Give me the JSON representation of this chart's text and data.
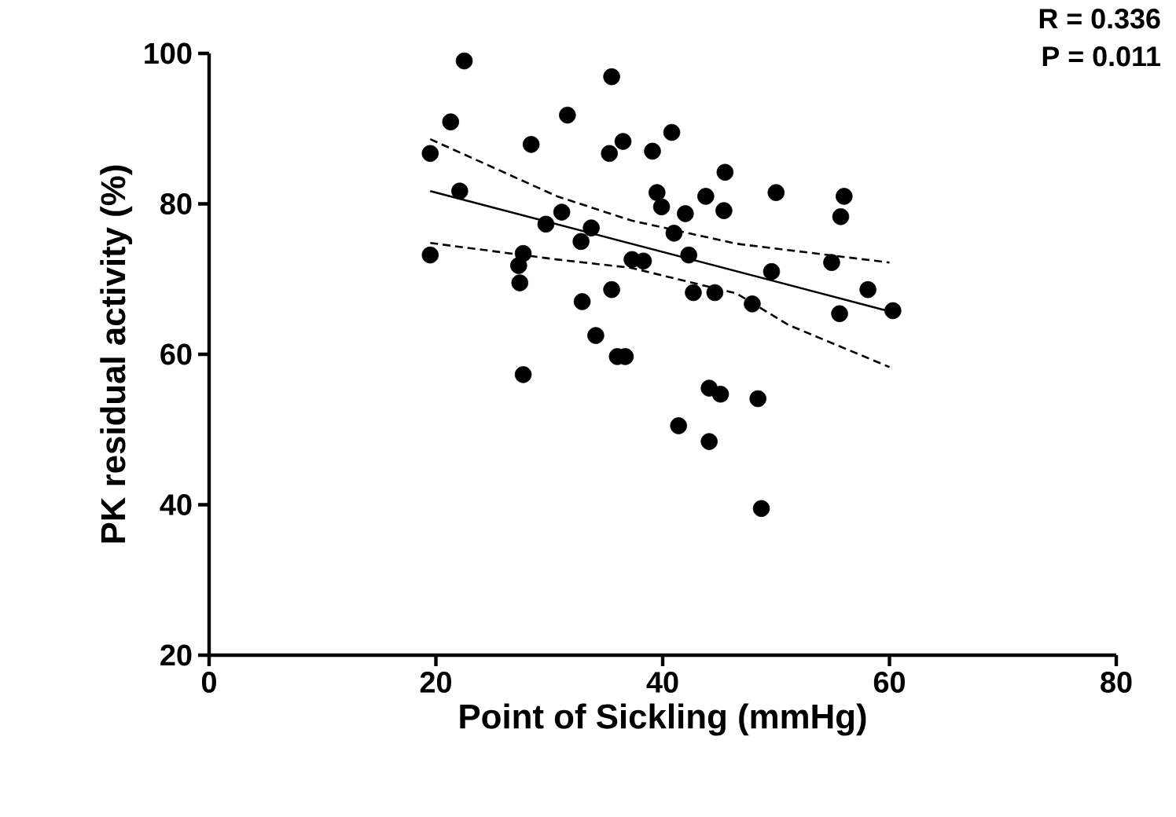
{
  "chart_data": {
    "type": "scatter",
    "xlabel": "Point of Sickling (mmHg)",
    "ylabel": "PK residual activity (%)",
    "annotations": [
      "R = 0.336",
      "P = 0.011"
    ],
    "xlim": [
      0,
      80
    ],
    "ylim": [
      20,
      100
    ],
    "xticks": [
      0,
      20,
      40,
      60,
      80
    ],
    "yticks": [
      20,
      40,
      60,
      80,
      100
    ],
    "series": [
      {
        "color": "#000000",
        "marker": "circle",
        "x": [
          22.5,
          35.5,
          21.3,
          31.6,
          19.5,
          28.4,
          36.5,
          35.3,
          22.1,
          31.1,
          29.7,
          33.7,
          32.8,
          19.5,
          27.7,
          27.3,
          27.4,
          37.3,
          35.5,
          32.9,
          34.1,
          36.0,
          36.7,
          40.8,
          39.1,
          45.5,
          50.0,
          56.0,
          55.7,
          39.5,
          39.9,
          43.8,
          45.4,
          42.0,
          41.0,
          42.3,
          38.3,
          49.6,
          54.9,
          42.7,
          44.6,
          47.9,
          58.1,
          55.6,
          60.3,
          44.1,
          45.1,
          48.4,
          27.7,
          41.4,
          44.1,
          48.7
        ],
        "values": [
          99.0,
          96.9,
          90.9,
          91.8,
          86.7,
          87.9,
          88.3,
          86.7,
          81.7,
          78.9,
          77.3,
          76.8,
          75.0,
          73.2,
          73.4,
          71.8,
          69.5,
          72.6,
          68.6,
          67.0,
          62.5,
          59.7,
          59.7,
          89.5,
          87.0,
          84.2,
          81.5,
          81.0,
          78.3,
          81.5,
          79.6,
          81.0,
          79.1,
          78.7,
          76.1,
          73.2,
          72.4,
          71.0,
          72.2,
          68.2,
          68.2,
          66.7,
          68.6,
          65.4,
          65.8,
          55.5,
          54.7,
          54.1,
          57.3,
          50.5,
          48.4,
          39.5
        ]
      },
      {
        "type": "line",
        "color": "#000000",
        "marker": "none",
        "line_style": "solid",
        "x": [
          19.5,
          60.3
        ],
        "values": [
          81.7,
          65.6
        ]
      },
      {
        "type": "line",
        "color": "#000000",
        "marker": "none",
        "line_style": "dashed",
        "x": [
          19.5,
          30.7,
          37.2,
          46.5,
          60.0
        ],
        "values": [
          88.6,
          81.0,
          77.8,
          74.7,
          72.2
        ]
      },
      {
        "type": "line",
        "color": "#000000",
        "marker": "none",
        "line_style": "dashed",
        "x": [
          19.5,
          30.7,
          37.2,
          46.5,
          51.1,
          60.0
        ],
        "values": [
          74.8,
          72.6,
          71.5,
          68.1,
          63.9,
          58.3
        ]
      }
    ]
  }
}
